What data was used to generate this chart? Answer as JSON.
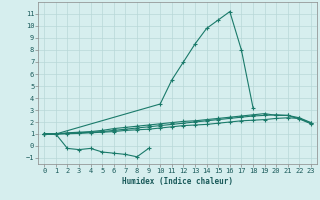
{
  "title": "",
  "xlabel": "Humidex (Indice chaleur)",
  "bg_color": "#d6eeee",
  "grid_color": "#b8d8d8",
  "line_color": "#1a7a6a",
  "xlim": [
    -0.5,
    23.5
  ],
  "ylim": [
    -1.5,
    12.0
  ],
  "xticks": [
    0,
    1,
    2,
    3,
    4,
    5,
    6,
    7,
    8,
    9,
    10,
    11,
    12,
    13,
    14,
    15,
    16,
    17,
    18,
    19,
    20,
    21,
    22,
    23
  ],
  "yticks": [
    -1,
    0,
    1,
    2,
    3,
    4,
    5,
    6,
    7,
    8,
    9,
    10,
    11
  ],
  "series": [
    {
      "x": [
        0,
        1,
        2,
        3,
        4,
        5,
        6,
        7,
        8,
        9
      ],
      "y": [
        1.0,
        1.0,
        -0.2,
        -0.3,
        -0.2,
        -0.5,
        -0.6,
        -0.7,
        -0.9,
        -0.2
      ]
    },
    {
      "x": [
        0,
        1,
        10,
        11,
        12,
        13,
        14,
        15,
        16,
        17,
        18
      ],
      "y": [
        1.0,
        1.0,
        3.5,
        5.5,
        7.0,
        8.5,
        9.8,
        10.5,
        11.2,
        8.0,
        3.2
      ]
    },
    {
      "x": [
        0,
        1,
        2,
        3,
        4,
        5,
        6,
        7,
        8,
        9,
        10,
        11,
        12,
        13,
        14,
        15,
        16,
        17,
        18,
        19,
        20,
        21,
        22,
        23
      ],
      "y": [
        1.0,
        1.0,
        1.1,
        1.15,
        1.2,
        1.3,
        1.45,
        1.55,
        1.65,
        1.75,
        1.85,
        1.95,
        2.05,
        2.1,
        2.2,
        2.3,
        2.4,
        2.5,
        2.6,
        2.7,
        2.55,
        2.55,
        2.25,
        1.85
      ]
    },
    {
      "x": [
        0,
        1,
        2,
        3,
        4,
        5,
        6,
        7,
        8,
        9,
        10,
        11,
        12,
        13,
        14,
        15,
        16,
        17,
        18,
        19,
        20,
        21,
        22,
        23
      ],
      "y": [
        1.0,
        1.0,
        1.05,
        1.1,
        1.15,
        1.2,
        1.3,
        1.4,
        1.5,
        1.6,
        1.7,
        1.8,
        1.9,
        2.0,
        2.1,
        2.2,
        2.3,
        2.4,
        2.5,
        2.55,
        2.6,
        2.55,
        2.35,
        1.95
      ]
    },
    {
      "x": [
        0,
        1,
        2,
        3,
        4,
        5,
        6,
        7,
        8,
        9,
        10,
        11,
        12,
        13,
        14,
        15,
        16,
        17,
        18,
        19,
        20,
        21,
        22,
        23
      ],
      "y": [
        1.0,
        1.0,
        1.02,
        1.05,
        1.1,
        1.15,
        1.2,
        1.3,
        1.35,
        1.4,
        1.5,
        1.6,
        1.7,
        1.75,
        1.8,
        1.9,
        2.0,
        2.1,
        2.15,
        2.2,
        2.3,
        2.35,
        2.3,
        1.9
      ]
    }
  ],
  "xlabel_fontsize": 5.5,
  "tick_fontsize": 5.0,
  "linewidth": 0.8,
  "markersize": 2.5
}
